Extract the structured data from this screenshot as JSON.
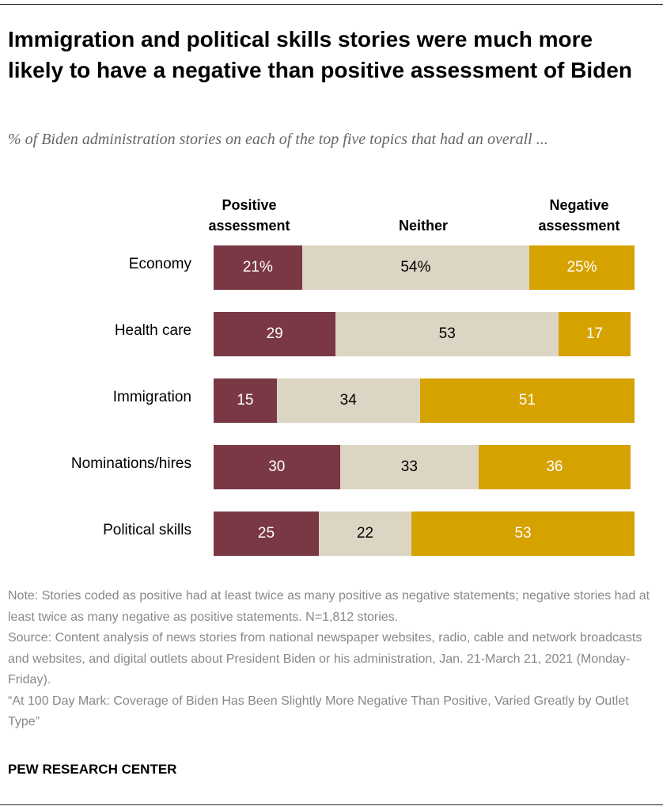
{
  "title": "Immigration and political skills stories were much more likely to have a negative than positive assessment of Biden",
  "subtitle": "% of Biden administration stories on each of the top five topics that had an overall ...",
  "chart_data": {
    "type": "bar",
    "orientation": "horizontal-stacked",
    "categories": [
      "Economy",
      "Health care",
      "Immigration",
      "Nominations/hires",
      "Political skills"
    ],
    "series": [
      {
        "name": "Positive assessment",
        "values": [
          21,
          29,
          15,
          30,
          25
        ],
        "color": "#7a3845"
      },
      {
        "name": "Neither",
        "values": [
          54,
          53,
          34,
          33,
          22
        ],
        "color": "#ddd5c3"
      },
      {
        "name": "Negative assessment",
        "values": [
          25,
          17,
          51,
          36,
          53
        ],
        "color": "#d6a200"
      }
    ],
    "value_labels": [
      [
        "21%",
        "54%",
        "25%"
      ],
      [
        "29",
        "53",
        "17"
      ],
      [
        "15",
        "34",
        "51"
      ],
      [
        "30",
        "33",
        "36"
      ],
      [
        "25",
        "22",
        "53"
      ]
    ],
    "xlim": [
      0,
      100
    ],
    "grid": false
  },
  "headers": {
    "positive_line1": "Positive",
    "positive_line2": "assessment",
    "neither": "Neither",
    "negative_line1": "Negative",
    "negative_line2": "assessment"
  },
  "notes": {
    "note": "Note: Stories coded as positive had at least twice as many positive as negative statements; negative stories had at least twice as many negative as positive statements. N=1,812 stories.",
    "source": "Source: Content analysis of news stories from national newspaper websites, radio, cable and network broadcasts and websites, and digital outlets about President Biden or his administration, Jan. 21-March 21, 2021 (Monday-Friday).",
    "report": "“At 100 Day Mark: Coverage of Biden Has Been Slightly More Negative Than Positive, Varied Greatly by Outlet Type”"
  },
  "brand": "PEW RESEARCH CENTER"
}
